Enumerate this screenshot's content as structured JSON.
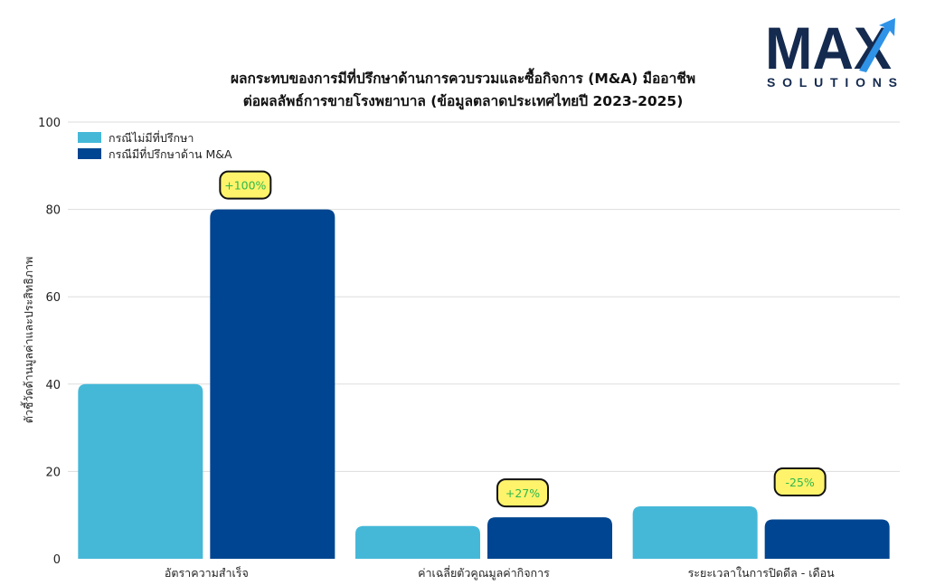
{
  "logo": {
    "text_main": "MAX",
    "text_sub": "SOLUTIONS",
    "colors": {
      "navy": "#142a4f",
      "accent": "#2f93e8"
    }
  },
  "chart_data": {
    "type": "bar",
    "title_line1": "ผลกระทบของการมีที่ปรึกษาด้านการควบรวมและซื้อกิจการ (M&A) มืออาชีพ",
    "title_line2": "ต่อผลลัพธ์การขายโรงพยาบาล (ข้อมูลตลาดประเทศไทยปี 2023-2025)",
    "xlabel": "",
    "ylabel": "ตัวชี้วัดด้านมูลค่าและประสิทธิภาพ",
    "ylim": [
      0,
      100
    ],
    "yticks": [
      0,
      20,
      40,
      60,
      80,
      100
    ],
    "grid": true,
    "legend_position": "top-left",
    "categories": [
      "อัตราความสำเร็จ",
      "ค่าเฉลี่ยตัวคูณมูลค่ากิจการ",
      "ระยะเวลาในการปิดดีล - เดือน"
    ],
    "series": [
      {
        "name": "กรณีไม่มีที่ปรึกษา",
        "color": "#45b8d8",
        "values": [
          40,
          7.5,
          12
        ]
      },
      {
        "name": "กรณีมีที่ปรึกษาด้าน M&A",
        "color": "#004591",
        "values": [
          80,
          9.5,
          9
        ]
      }
    ],
    "annotations": [
      {
        "category_index": 0,
        "text": "+100%"
      },
      {
        "category_index": 1,
        "text": "+27%"
      },
      {
        "category_index": 2,
        "text": "-25%"
      }
    ],
    "annotation_style": {
      "fill": "#fff36b",
      "stroke": "#111111",
      "text_color": "#2db84c"
    }
  }
}
